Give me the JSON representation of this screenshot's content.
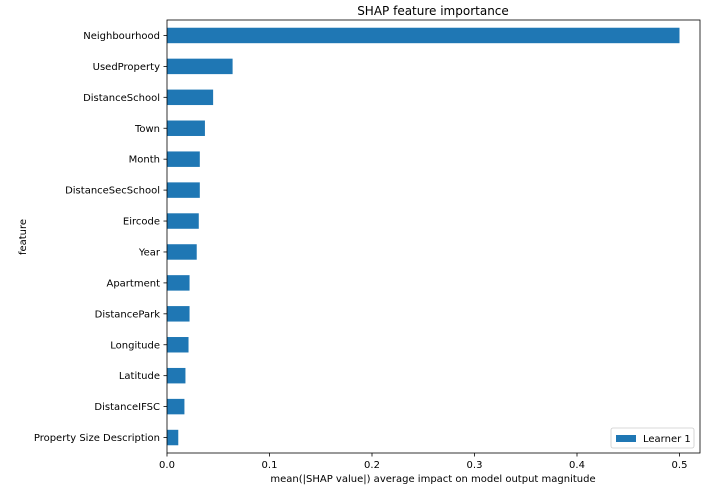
{
  "chart_data": {
    "type": "bar",
    "orientation": "horizontal",
    "title": "SHAP feature importance",
    "xlabel": "mean(|SHAP value|) average impact on model output magnitude",
    "ylabel": "feature",
    "xlim": [
      0,
      0.52
    ],
    "xticks": [
      "0.0",
      "0.1",
      "0.2",
      "0.3",
      "0.4",
      "0.5"
    ],
    "xtick_values": [
      0,
      0.1,
      0.2,
      0.3,
      0.4,
      0.5
    ],
    "categories": [
      "Neighbourhood",
      "UsedProperty",
      "DistanceSchool",
      "Town",
      "Month",
      "DistanceSecSchool",
      "Eircode",
      "Year",
      "Apartment",
      "DistancePark",
      "Longitude",
      "Latitude",
      "DistanceIFSC",
      "Property Size Description"
    ],
    "series": [
      {
        "name": "Learner 1",
        "color": "#1f77b4",
        "values": [
          0.5,
          0.064,
          0.045,
          0.037,
          0.032,
          0.032,
          0.031,
          0.029,
          0.022,
          0.022,
          0.021,
          0.018,
          0.017,
          0.011
        ]
      }
    ],
    "legend_position": "bottom-right",
    "grid": false
  }
}
